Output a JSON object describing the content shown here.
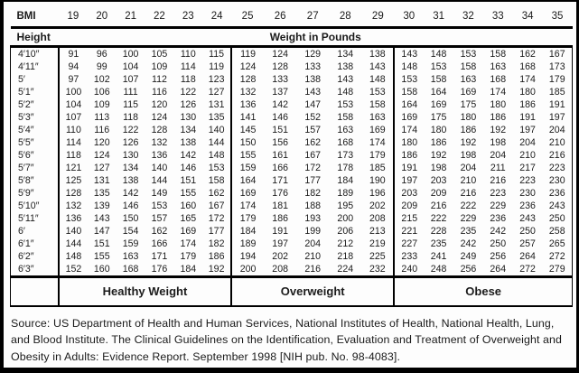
{
  "table": {
    "corner_label": "BMI",
    "bmi_values": [
      "19",
      "20",
      "21",
      "22",
      "23",
      "24",
      "25",
      "26",
      "27",
      "28",
      "29",
      "30",
      "31",
      "32",
      "33",
      "34",
      "35"
    ],
    "height_header": "Height",
    "weight_header": "Weight in Pounds",
    "group_sizes": [
      6,
      5,
      6
    ],
    "rows": [
      {
        "height": "4′10″",
        "weights": [
          91,
          96,
          100,
          105,
          110,
          115,
          119,
          124,
          129,
          134,
          138,
          143,
          148,
          153,
          158,
          162,
          167
        ]
      },
      {
        "height": "4′11″",
        "weights": [
          94,
          99,
          104,
          109,
          114,
          119,
          124,
          128,
          133,
          138,
          143,
          148,
          153,
          158,
          163,
          168,
          173
        ]
      },
      {
        "height": "5′",
        "weights": [
          97,
          102,
          107,
          112,
          118,
          123,
          128,
          133,
          138,
          143,
          148,
          153,
          158,
          163,
          168,
          174,
          179
        ]
      },
      {
        "height": "5′1″",
        "weights": [
          100,
          106,
          111,
          116,
          122,
          127,
          132,
          137,
          143,
          148,
          153,
          158,
          164,
          169,
          174,
          180,
          185
        ]
      },
      {
        "height": "5′2″",
        "weights": [
          104,
          109,
          115,
          120,
          126,
          131,
          136,
          142,
          147,
          153,
          158,
          164,
          169,
          175,
          180,
          186,
          191
        ]
      },
      {
        "height": "5′3″",
        "weights": [
          107,
          113,
          118,
          124,
          130,
          135,
          141,
          146,
          152,
          158,
          163,
          169,
          175,
          180,
          186,
          191,
          197
        ]
      },
      {
        "height": "5′4″",
        "weights": [
          110,
          116,
          122,
          128,
          134,
          140,
          145,
          151,
          157,
          163,
          169,
          174,
          180,
          186,
          192,
          197,
          204
        ]
      },
      {
        "height": "5′5″",
        "weights": [
          114,
          120,
          126,
          132,
          138,
          144,
          150,
          156,
          162,
          168,
          174,
          180,
          186,
          192,
          198,
          204,
          210
        ]
      },
      {
        "height": "5′6″",
        "weights": [
          118,
          124,
          130,
          136,
          142,
          148,
          155,
          161,
          167,
          173,
          179,
          186,
          192,
          198,
          204,
          210,
          216
        ]
      },
      {
        "height": "5′7″",
        "weights": [
          121,
          127,
          134,
          140,
          146,
          153,
          159,
          166,
          172,
          178,
          185,
          191,
          198,
          204,
          211,
          217,
          223
        ]
      },
      {
        "height": "5′8″",
        "weights": [
          125,
          131,
          138,
          144,
          151,
          158,
          164,
          171,
          177,
          184,
          190,
          197,
          203,
          210,
          216,
          223,
          230
        ]
      },
      {
        "height": "5′9″",
        "weights": [
          128,
          135,
          142,
          149,
          155,
          162,
          169,
          176,
          182,
          189,
          196,
          203,
          209,
          216,
          223,
          230,
          236
        ]
      },
      {
        "height": "5′10″",
        "weights": [
          132,
          139,
          146,
          153,
          160,
          167,
          174,
          181,
          188,
          195,
          202,
          209,
          216,
          222,
          229,
          236,
          243
        ]
      },
      {
        "height": "5′11″",
        "weights": [
          136,
          143,
          150,
          157,
          165,
          172,
          179,
          186,
          193,
          200,
          208,
          215,
          222,
          229,
          236,
          243,
          250
        ]
      },
      {
        "height": "6′",
        "weights": [
          140,
          147,
          154,
          162,
          169,
          177,
          184,
          191,
          199,
          206,
          213,
          221,
          228,
          235,
          242,
          250,
          258
        ]
      },
      {
        "height": "6′1″",
        "weights": [
          144,
          151,
          159,
          166,
          174,
          182,
          189,
          197,
          204,
          212,
          219,
          227,
          235,
          242,
          250,
          257,
          265
        ]
      },
      {
        "height": "6′2″",
        "weights": [
          148,
          155,
          163,
          171,
          179,
          186,
          194,
          202,
          210,
          218,
          225,
          233,
          241,
          249,
          256,
          264,
          272
        ]
      },
      {
        "height": "6′3″",
        "weights": [
          152,
          160,
          168,
          176,
          184,
          192,
          200,
          208,
          216,
          224,
          232,
          240,
          248,
          256,
          264,
          272,
          279
        ]
      }
    ],
    "categories": [
      {
        "label": "Healthy Weight",
        "colspan": 6
      },
      {
        "label": "Overweight",
        "colspan": 5
      },
      {
        "label": "Obese",
        "colspan": 6
      }
    ]
  },
  "footer": {
    "source_text": "Source: US Department of Health and Human Services, National Institutes of Health, National Health, Lung, and Blood Institute. The Clinical Guidelines on the Identification, Evaluation and Treatment of Overweight and Obesity in Adults: Evidence Report. September 1998 [NIH pub. No. 98-4083]."
  }
}
